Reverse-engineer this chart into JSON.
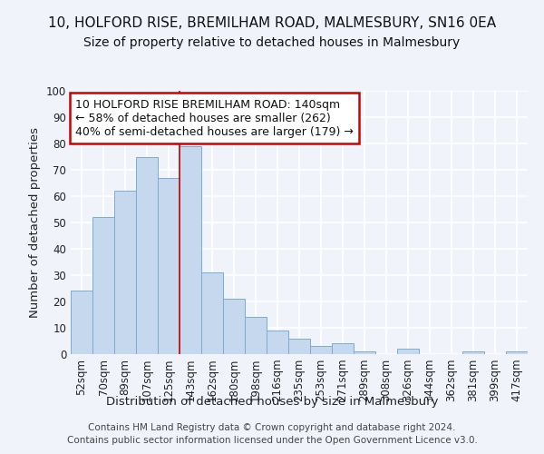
{
  "title1": "10, HOLFORD RISE, BREMILHAM ROAD, MALMESBURY, SN16 0EA",
  "title2": "Size of property relative to detached houses in Malmesbury",
  "xlabel": "Distribution of detached houses by size in Malmesbury",
  "ylabel": "Number of detached properties",
  "categories": [
    "52sqm",
    "70sqm",
    "89sqm",
    "107sqm",
    "125sqm",
    "143sqm",
    "162sqm",
    "180sqm",
    "198sqm",
    "216sqm",
    "235sqm",
    "253sqm",
    "271sqm",
    "289sqm",
    "308sqm",
    "326sqm",
    "344sqm",
    "362sqm",
    "381sqm",
    "399sqm",
    "417sqm"
  ],
  "values": [
    24,
    52,
    62,
    75,
    67,
    79,
    31,
    21,
    14,
    9,
    6,
    3,
    4,
    1,
    0,
    2,
    0,
    0,
    1,
    0,
    1
  ],
  "bar_color": "#c5d8ee",
  "bar_edge_color": "#7aadd4",
  "bar_width": 1.0,
  "vline_index": 5,
  "vline_color": "#cc0000",
  "annotation_text": "10 HOLFORD RISE BREMILHAM ROAD: 140sqm\n← 58% of detached houses are smaller (262)\n40% of semi-detached houses are larger (179) →",
  "annotation_box_facecolor": "#ffffff",
  "annotation_box_edgecolor": "#cc0000",
  "ylim": [
    0,
    100
  ],
  "yticks": [
    0,
    10,
    20,
    30,
    40,
    50,
    60,
    70,
    80,
    90,
    100
  ],
  "footer1": "Contains HM Land Registry data © Crown copyright and database right 2024.",
  "footer2": "Contains public sector information licensed under the Open Government Licence v3.0.",
  "fig_bg_color": "#f0f4fa",
  "plot_bg_color": "#f0f4fa",
  "grid_color": "#ffffff",
  "title_fontsize": 11,
  "subtitle_fontsize": 10,
  "axis_label_fontsize": 9.5,
  "tick_fontsize": 8.5,
  "annotation_fontsize": 9,
  "footer_fontsize": 7.5
}
